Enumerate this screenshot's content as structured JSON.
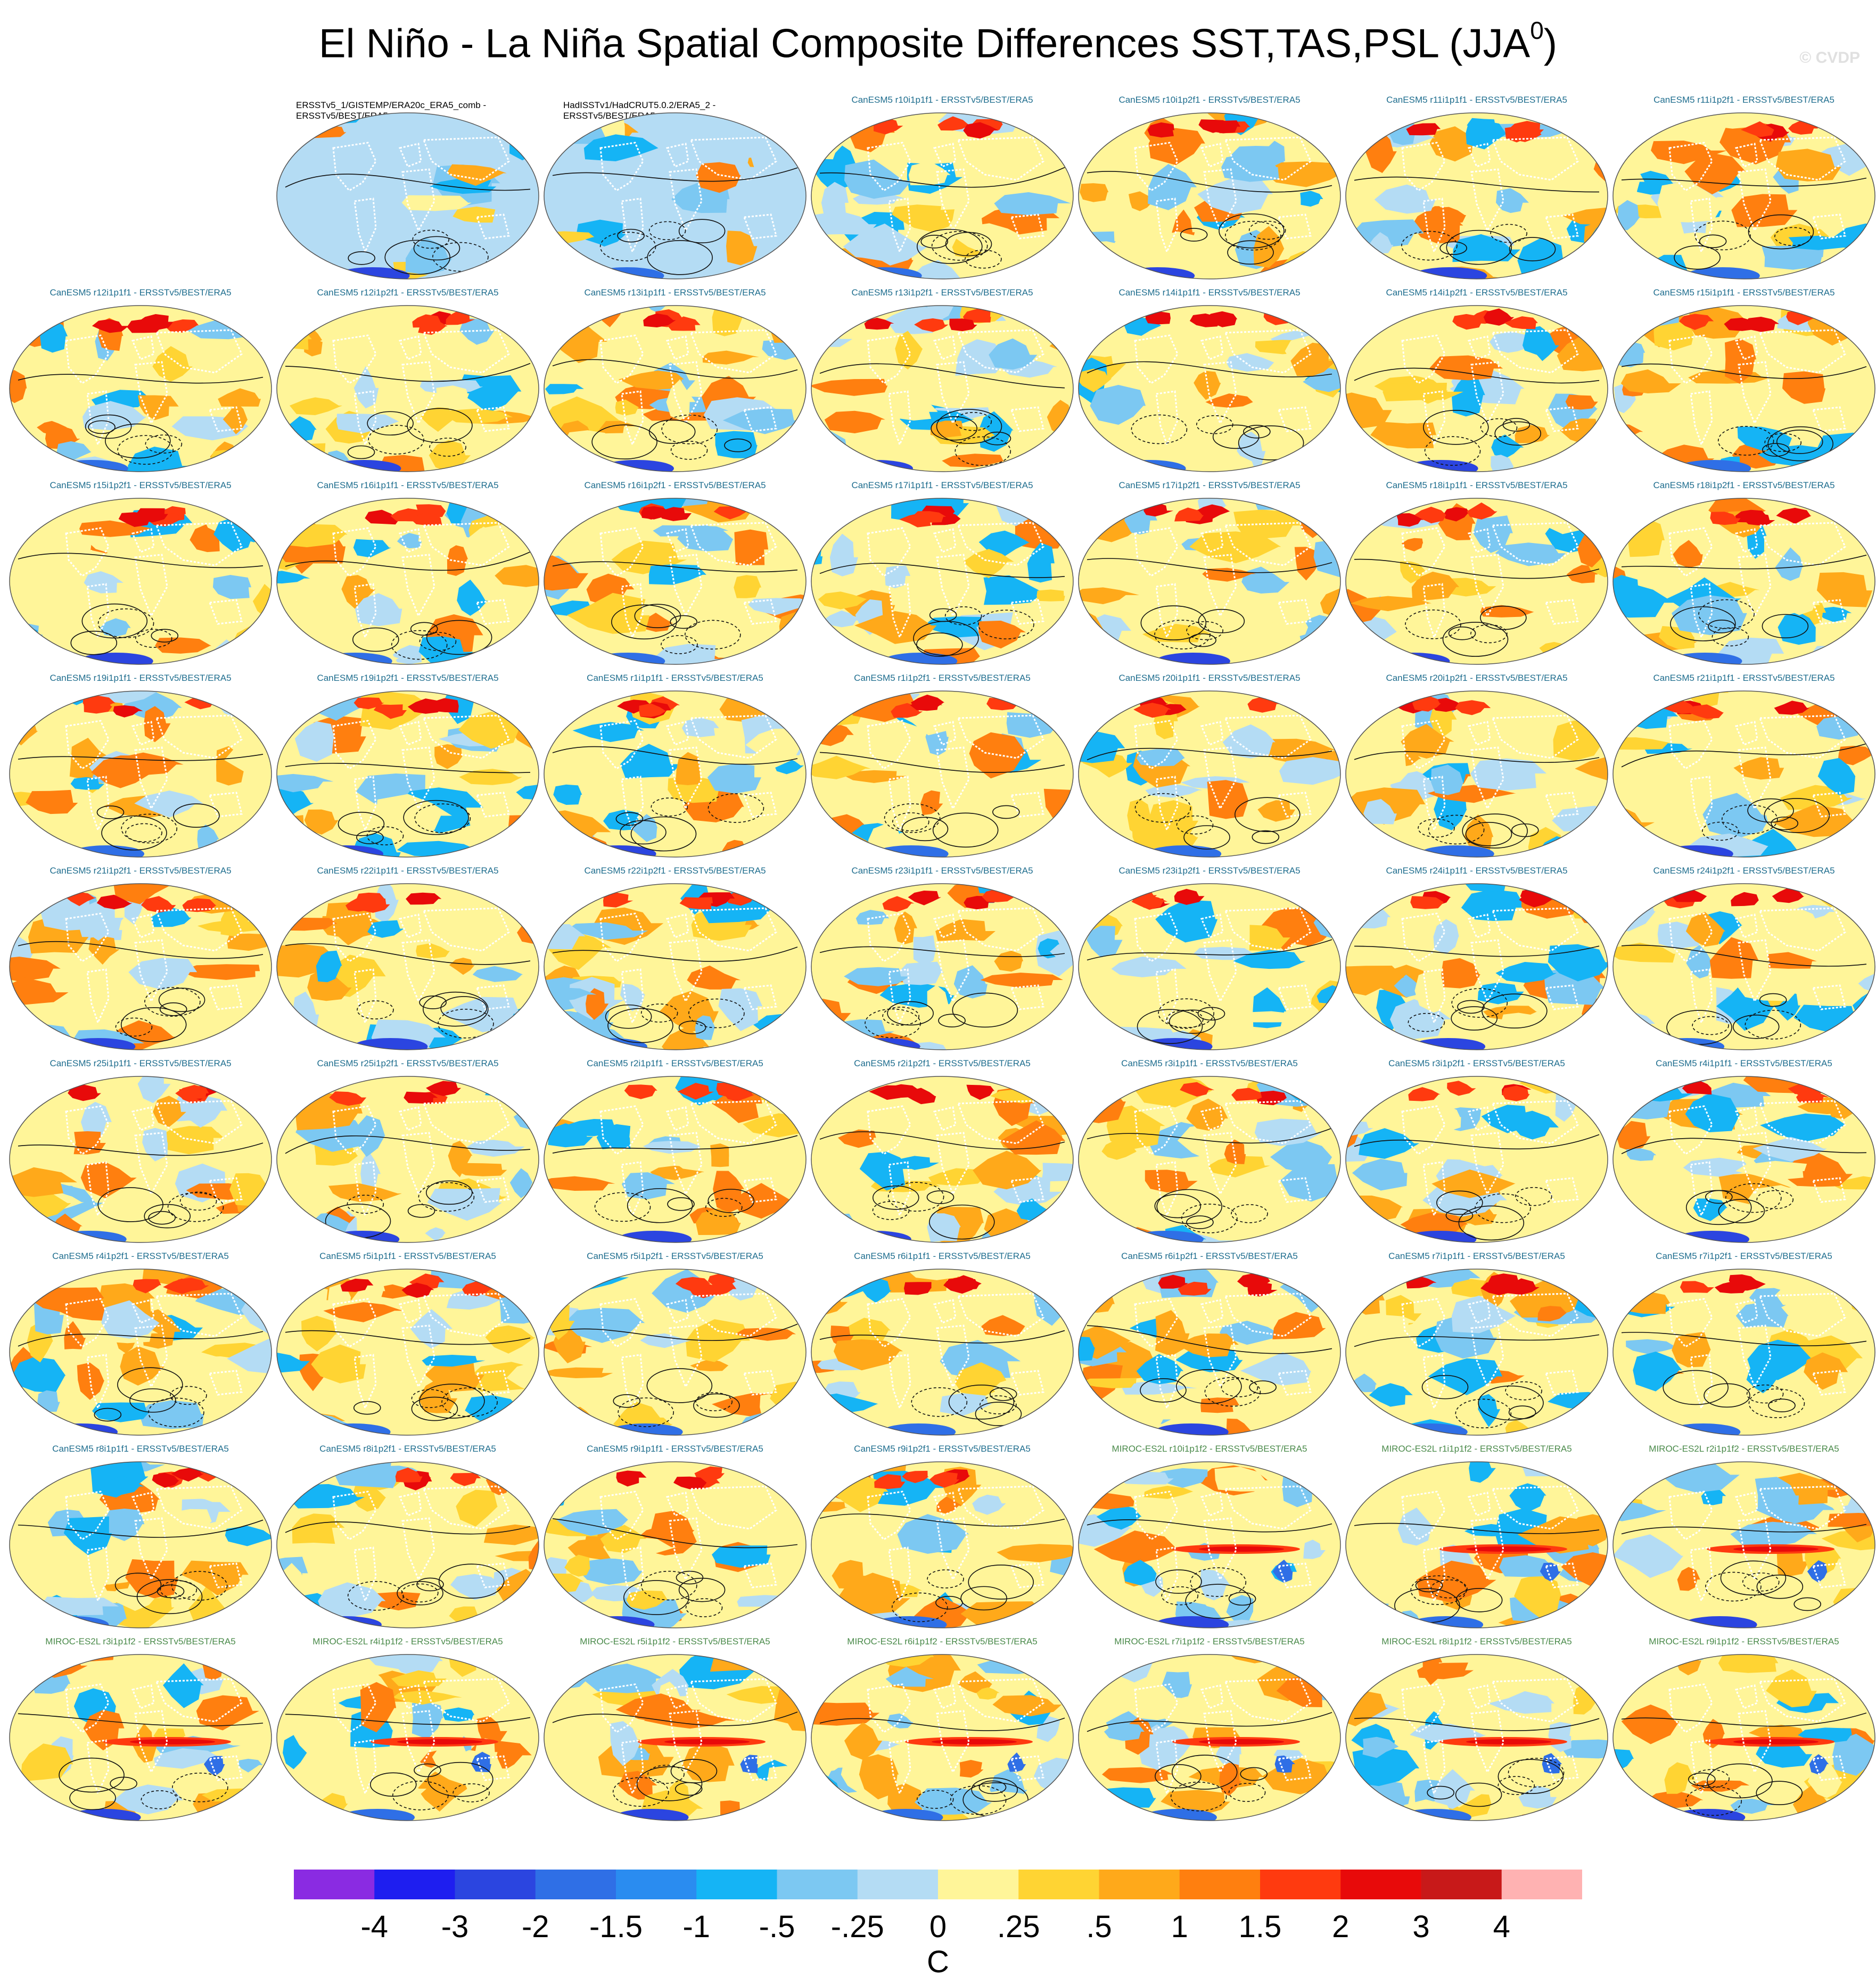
{
  "title": {
    "text": "El Niño - La Niña Spatial Composite Differences SST,TAS,PSL (JJA",
    "superscript": "0",
    "close": ")"
  },
  "watermark": "© CVDP",
  "colors": {
    "canesm_label": "#1e6d8e",
    "miroc_label": "#4a8a4a",
    "obs_label": "#000000"
  },
  "colorbar": {
    "unit": "C",
    "tick_labels": [
      "-4",
      "-3",
      "-2",
      "-1.5",
      "-1",
      "-.5",
      "-.25",
      "0",
      ".25",
      ".5",
      "1",
      "1.5",
      "2",
      "3",
      "4"
    ],
    "colors": [
      "#8a2be2",
      "#1e1ef0",
      "#2b45e0",
      "#2f6fe6",
      "#2a8cf0",
      "#15b4f5",
      "#7cc8f2",
      "#b4dcf4",
      "#fff599",
      "#ffd433",
      "#ffa91a",
      "#ff7f0f",
      "#ff3a0f",
      "#e80a0a",
      "#c81919",
      "#ffb2b2"
    ]
  },
  "panels": [
    {
      "label": "ERSSTv5_1/GISTEMP/ERA20c_ERA5_comb -\nERSSTv5/BEST/ERA5",
      "model": "obs"
    },
    {
      "label": "HadISSTv1/HadCRUT5.0.2/ERA5_2 -\nERSSTv5/BEST/ERA5",
      "model": "obs"
    },
    {
      "label": "CanESM5 r10i1p1f1 - ERSSTv5/BEST/ERA5",
      "model": "canesm"
    },
    {
      "label": "CanESM5 r10i1p2f1 - ERSSTv5/BEST/ERA5",
      "model": "canesm"
    },
    {
      "label": "CanESM5 r11i1p1f1 - ERSSTv5/BEST/ERA5",
      "model": "canesm"
    },
    {
      "label": "CanESM5 r11i1p2f1 - ERSSTv5/BEST/ERA5",
      "model": "canesm"
    },
    {
      "label": "CanESM5 r12i1p1f1 - ERSSTv5/BEST/ERA5",
      "model": "canesm"
    },
    {
      "label": "CanESM5 r12i1p2f1 - ERSSTv5/BEST/ERA5",
      "model": "canesm"
    },
    {
      "label": "CanESM5 r13i1p1f1 - ERSSTv5/BEST/ERA5",
      "model": "canesm"
    },
    {
      "label": "CanESM5 r13i1p2f1 - ERSSTv5/BEST/ERA5",
      "model": "canesm"
    },
    {
      "label": "CanESM5 r14i1p1f1 - ERSSTv5/BEST/ERA5",
      "model": "canesm"
    },
    {
      "label": "CanESM5 r14i1p2f1 - ERSSTv5/BEST/ERA5",
      "model": "canesm"
    },
    {
      "label": "CanESM5 r15i1p1f1 - ERSSTv5/BEST/ERA5",
      "model": "canesm"
    },
    {
      "label": "CanESM5 r15i1p2f1 - ERSSTv5/BEST/ERA5",
      "model": "canesm"
    },
    {
      "label": "CanESM5 r16i1p1f1 - ERSSTv5/BEST/ERA5",
      "model": "canesm"
    },
    {
      "label": "CanESM5 r16i1p2f1 - ERSSTv5/BEST/ERA5",
      "model": "canesm"
    },
    {
      "label": "CanESM5 r17i1p1f1 - ERSSTv5/BEST/ERA5",
      "model": "canesm"
    },
    {
      "label": "CanESM5 r17i1p2f1 - ERSSTv5/BEST/ERA5",
      "model": "canesm"
    },
    {
      "label": "CanESM5 r18i1p1f1 - ERSSTv5/BEST/ERA5",
      "model": "canesm"
    },
    {
      "label": "CanESM5 r18i1p2f1 - ERSSTv5/BEST/ERA5",
      "model": "canesm"
    },
    {
      "label": "CanESM5 r19i1p1f1 - ERSSTv5/BEST/ERA5",
      "model": "canesm"
    },
    {
      "label": "CanESM5 r19i1p2f1 - ERSSTv5/BEST/ERA5",
      "model": "canesm"
    },
    {
      "label": "CanESM5 r1i1p1f1 - ERSSTv5/BEST/ERA5",
      "model": "canesm"
    },
    {
      "label": "CanESM5 r1i1p2f1 - ERSSTv5/BEST/ERA5",
      "model": "canesm"
    },
    {
      "label": "CanESM5 r20i1p1f1 - ERSSTv5/BEST/ERA5",
      "model": "canesm"
    },
    {
      "label": "CanESM5 r20i1p2f1 - ERSSTv5/BEST/ERA5",
      "model": "canesm"
    },
    {
      "label": "CanESM5 r21i1p1f1 - ERSSTv5/BEST/ERA5",
      "model": "canesm"
    },
    {
      "label": "CanESM5 r21i1p2f1 - ERSSTv5/BEST/ERA5",
      "model": "canesm"
    },
    {
      "label": "CanESM5 r22i1p1f1 - ERSSTv5/BEST/ERA5",
      "model": "canesm"
    },
    {
      "label": "CanESM5 r22i1p2f1 - ERSSTv5/BEST/ERA5",
      "model": "canesm"
    },
    {
      "label": "CanESM5 r23i1p1f1 - ERSSTv5/BEST/ERA5",
      "model": "canesm"
    },
    {
      "label": "CanESM5 r23i1p2f1 - ERSSTv5/BEST/ERA5",
      "model": "canesm"
    },
    {
      "label": "CanESM5 r24i1p1f1 - ERSSTv5/BEST/ERA5",
      "model": "canesm"
    },
    {
      "label": "CanESM5 r24i1p2f1 - ERSSTv5/BEST/ERA5",
      "model": "canesm"
    },
    {
      "label": "CanESM5 r25i1p1f1 - ERSSTv5/BEST/ERA5",
      "model": "canesm"
    },
    {
      "label": "CanESM5 r25i1p2f1 - ERSSTv5/BEST/ERA5",
      "model": "canesm"
    },
    {
      "label": "CanESM5 r2i1p1f1 - ERSSTv5/BEST/ERA5",
      "model": "canesm"
    },
    {
      "label": "CanESM5 r2i1p2f1 - ERSSTv5/BEST/ERA5",
      "model": "canesm"
    },
    {
      "label": "CanESM5 r3i1p1f1 - ERSSTv5/BEST/ERA5",
      "model": "canesm"
    },
    {
      "label": "CanESM5 r3i1p2f1 - ERSSTv5/BEST/ERA5",
      "model": "canesm"
    },
    {
      "label": "CanESM5 r4i1p1f1 - ERSSTv5/BEST/ERA5",
      "model": "canesm"
    },
    {
      "label": "CanESM5 r4i1p2f1 - ERSSTv5/BEST/ERA5",
      "model": "canesm"
    },
    {
      "label": "CanESM5 r5i1p1f1 - ERSSTv5/BEST/ERA5",
      "model": "canesm"
    },
    {
      "label": "CanESM5 r5i1p2f1 - ERSSTv5/BEST/ERA5",
      "model": "canesm"
    },
    {
      "label": "CanESM5 r6i1p1f1 - ERSSTv5/BEST/ERA5",
      "model": "canesm"
    },
    {
      "label": "CanESM5 r6i1p2f1 - ERSSTv5/BEST/ERA5",
      "model": "canesm"
    },
    {
      "label": "CanESM5 r7i1p1f1 - ERSSTv5/BEST/ERA5",
      "model": "canesm"
    },
    {
      "label": "CanESM5 r7i1p2f1 - ERSSTv5/BEST/ERA5",
      "model": "canesm"
    },
    {
      "label": "CanESM5 r8i1p1f1 - ERSSTv5/BEST/ERA5",
      "model": "canesm"
    },
    {
      "label": "CanESM5 r8i1p2f1 - ERSSTv5/BEST/ERA5",
      "model": "canesm"
    },
    {
      "label": "CanESM5 r9i1p1f1 - ERSSTv5/BEST/ERA5",
      "model": "canesm"
    },
    {
      "label": "CanESM5 r9i1p2f1 - ERSSTv5/BEST/ERA5",
      "model": "canesm"
    },
    {
      "label": "MIROC-ES2L r10i1p1f2 - ERSSTv5/BEST/ERA5",
      "model": "miroc"
    },
    {
      "label": "MIROC-ES2L r1i1p1f2 - ERSSTv5/BEST/ERA5",
      "model": "miroc"
    },
    {
      "label": "MIROC-ES2L r2i1p1f2 - ERSSTv5/BEST/ERA5",
      "model": "miroc"
    },
    {
      "label": "MIROC-ES2L r3i1p1f2 - ERSSTv5/BEST/ERA5",
      "model": "miroc"
    },
    {
      "label": "MIROC-ES2L r4i1p1f2 - ERSSTv5/BEST/ERA5",
      "model": "miroc"
    },
    {
      "label": "MIROC-ES2L r5i1p1f2 - ERSSTv5/BEST/ERA5",
      "model": "miroc"
    },
    {
      "label": "MIROC-ES2L r6i1p1f2 - ERSSTv5/BEST/ERA5",
      "model": "miroc"
    },
    {
      "label": "MIROC-ES2L r7i1p1f2 - ERSSTv5/BEST/ERA5",
      "model": "miroc"
    },
    {
      "label": "MIROC-ES2L r8i1p1f2 - ERSSTv5/BEST/ERA5",
      "model": "miroc"
    },
    {
      "label": "MIROC-ES2L r9i1p1f2 - ERSSTv5/BEST/ERA5",
      "model": "miroc"
    }
  ]
}
